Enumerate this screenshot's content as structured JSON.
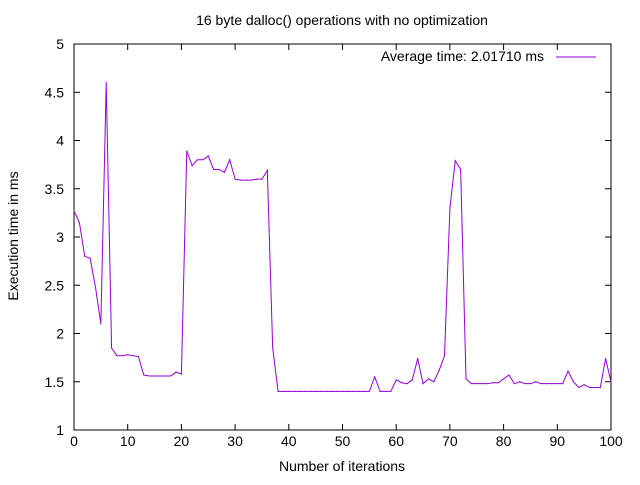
{
  "chart_data": {
    "type": "line",
    "title": "16 byte dalloc() operations with no optimization",
    "xlabel": "Number of iterations",
    "ylabel": "Execution time in ms",
    "xlim": [
      0,
      100
    ],
    "ylim": [
      1,
      5
    ],
    "xticks": [
      0,
      10,
      20,
      30,
      40,
      50,
      60,
      70,
      80,
      90,
      100
    ],
    "yticks": [
      1,
      1.5,
      2,
      2.5,
      3,
      3.5,
      4,
      4.5,
      5
    ],
    "ytick_labels": [
      "1",
      "1.5",
      "2",
      "2.5",
      "3",
      "3.5",
      "4",
      "4.5",
      "5"
    ],
    "grid": false,
    "legend_position": "top-right",
    "series": [
      {
        "name": "Average time: 2.01710 ms",
        "color": "#9400d3",
        "x": [
          0,
          1,
          2,
          3,
          4,
          5,
          6,
          7,
          8,
          9,
          10,
          11,
          12,
          13,
          14,
          15,
          16,
          17,
          18,
          19,
          20,
          21,
          22,
          23,
          24,
          25,
          26,
          27,
          28,
          29,
          30,
          31,
          32,
          33,
          34,
          35,
          36,
          37,
          38,
          39,
          40,
          41,
          42,
          43,
          44,
          45,
          46,
          47,
          48,
          49,
          50,
          51,
          52,
          53,
          54,
          55,
          56,
          57,
          58,
          59,
          60,
          61,
          62,
          63,
          64,
          65,
          66,
          67,
          68,
          69,
          70,
          71,
          72,
          73,
          74,
          75,
          76,
          77,
          78,
          79,
          80,
          81,
          82,
          83,
          84,
          85,
          86,
          87,
          88,
          89,
          90,
          91,
          92,
          93,
          94,
          95,
          96,
          97,
          98,
          99,
          100
        ],
        "values": [
          3.27,
          3.15,
          2.8,
          2.78,
          2.48,
          2.1,
          4.6,
          1.85,
          1.77,
          1.77,
          1.78,
          1.77,
          1.76,
          1.57,
          1.56,
          1.56,
          1.56,
          1.56,
          1.56,
          1.6,
          1.58,
          3.89,
          3.74,
          3.8,
          3.8,
          3.84,
          3.7,
          3.7,
          3.67,
          3.8,
          3.6,
          3.59,
          3.59,
          3.59,
          3.6,
          3.6,
          3.69,
          1.85,
          1.4,
          1.4,
          1.4,
          1.4,
          1.4,
          1.4,
          1.4,
          1.4,
          1.4,
          1.4,
          1.4,
          1.4,
          1.4,
          1.4,
          1.4,
          1.4,
          1.4,
          1.4,
          1.55,
          1.4,
          1.4,
          1.4,
          1.52,
          1.49,
          1.48,
          1.52,
          1.74,
          1.48,
          1.53,
          1.5,
          1.62,
          1.77,
          3.3,
          3.79,
          3.7,
          1.53,
          1.48,
          1.48,
          1.48,
          1.48,
          1.49,
          1.49,
          1.53,
          1.57,
          1.48,
          1.5,
          1.48,
          1.48,
          1.5,
          1.48,
          1.48,
          1.48,
          1.48,
          1.48,
          1.61,
          1.5,
          1.44,
          1.47,
          1.44,
          1.44,
          1.44,
          1.74,
          1.5
        ]
      }
    ]
  }
}
